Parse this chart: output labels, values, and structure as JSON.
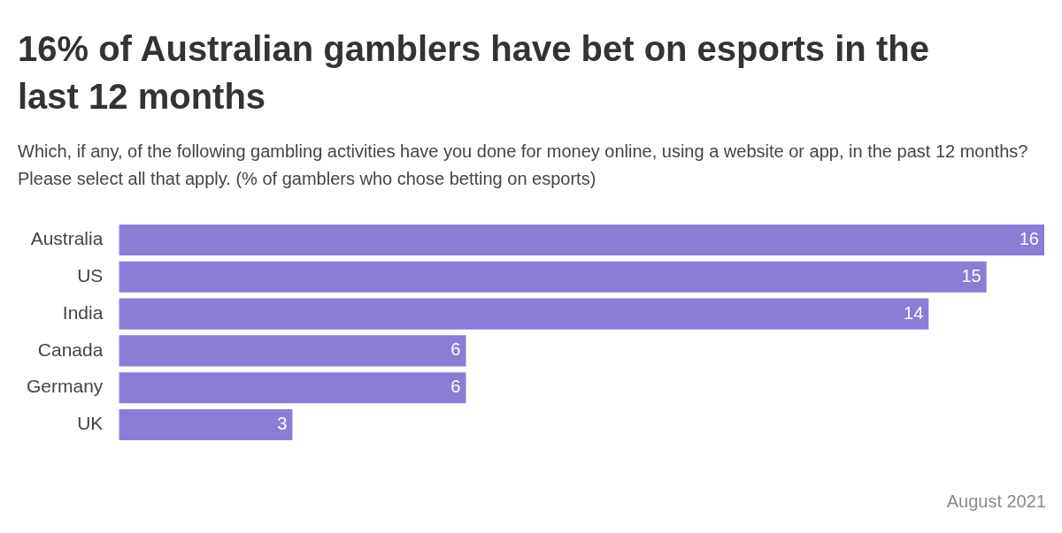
{
  "chart_data": {
    "type": "bar",
    "orientation": "horizontal",
    "title": "16% of Australian gamblers have bet on esports in the last 12 months",
    "subtitle": "Which, if any, of the following gambling activities have you done for money online, using a website or app, in the past 12 months? Please select all that apply. (% of gamblers who chose betting on esports)",
    "categories": [
      "Australia",
      "US",
      "India",
      "Canada",
      "Germany",
      "UK"
    ],
    "values": [
      16,
      15,
      14,
      6,
      6,
      3
    ],
    "color": "#8a7dd6",
    "data_labels": true,
    "legend": false,
    "annotations": [
      "August 2021"
    ]
  }
}
